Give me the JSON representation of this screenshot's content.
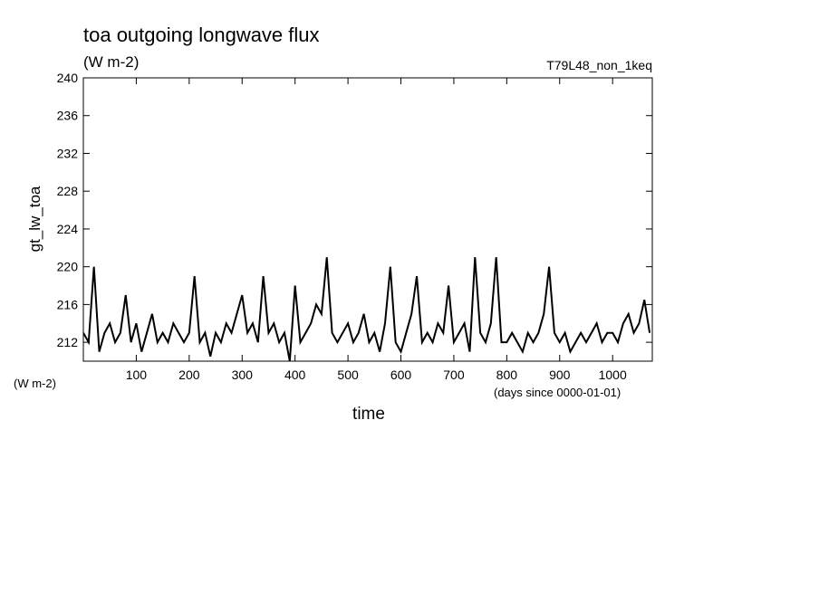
{
  "chart_data": {
    "type": "line",
    "title": "toa outgoing longwave flux",
    "subtitle": "(W m-2)",
    "annotation": "T79L48_non_1keq",
    "ylabel": "gt_lw_toa",
    "yunit_label": "(W m-2)",
    "xunit_label": "(days since 0000-01-01)",
    "xlabel": "time",
    "color": "#000000",
    "x": [
      0,
      10,
      20,
      30,
      40,
      50,
      60,
      70,
      80,
      90,
      100,
      110,
      120,
      130,
      140,
      150,
      160,
      170,
      180,
      190,
      200,
      210,
      220,
      230,
      240,
      250,
      260,
      270,
      280,
      290,
      300,
      310,
      320,
      330,
      340,
      350,
      360,
      370,
      380,
      390,
      400,
      410,
      420,
      430,
      440,
      450,
      460,
      470,
      480,
      490,
      500,
      510,
      520,
      530,
      540,
      550,
      560,
      570,
      580,
      590,
      600,
      610,
      620,
      630,
      640,
      650,
      660,
      670,
      680,
      690,
      700,
      710,
      720,
      730,
      740,
      750,
      760,
      770,
      780,
      790,
      800,
      810,
      820,
      830,
      840,
      850,
      860,
      870,
      880,
      890,
      900,
      910,
      920,
      930,
      940,
      950,
      960,
      970,
      980,
      990,
      1000,
      1010,
      1020,
      1030,
      1040,
      1050,
      1060,
      1070
    ],
    "values": [
      213,
      212,
      220,
      211,
      213,
      214,
      212,
      213,
      217,
      212,
      214,
      211,
      213,
      215,
      212,
      213,
      212,
      214,
      213,
      212,
      213,
      219,
      212,
      213,
      210.5,
      213,
      212,
      214,
      213,
      215,
      217,
      213,
      214,
      212,
      219,
      213,
      214,
      212,
      213,
      210,
      218,
      212,
      213,
      214,
      216,
      215,
      221,
      213,
      212,
      213,
      214,
      212,
      213,
      215,
      212,
      213,
      211,
      214,
      220,
      212,
      211,
      213,
      215,
      219,
      212,
      213,
      212,
      214,
      213,
      218,
      212,
      213,
      214,
      211,
      221,
      213,
      212,
      214,
      221,
      212,
      212,
      213,
      212,
      211,
      213,
      212,
      213,
      215,
      220,
      213,
      212,
      213,
      211,
      212,
      213,
      212,
      213,
      214,
      212,
      213,
      213,
      212,
      214,
      215,
      213,
      214,
      216.5,
      213
    ],
    "xlim": [
      0,
      1075
    ],
    "ylim": [
      210,
      240
    ],
    "xticks": [
      100,
      200,
      300,
      400,
      500,
      600,
      700,
      800,
      900,
      1000
    ],
    "yticks": [
      212,
      216,
      220,
      224,
      228,
      232,
      236,
      240
    ]
  }
}
